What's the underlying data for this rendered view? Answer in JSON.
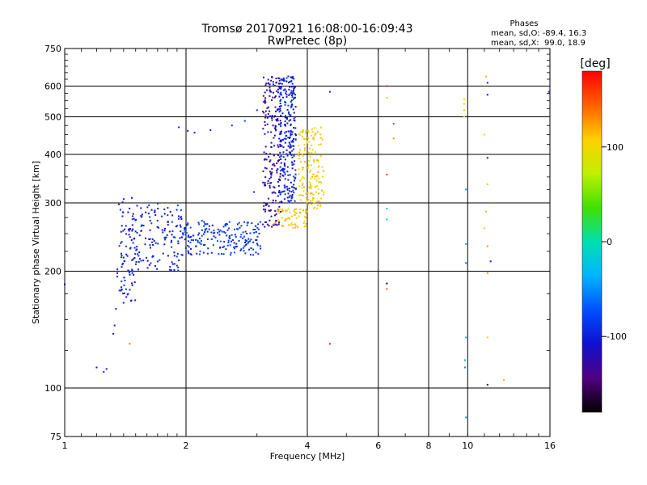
{
  "chart_data": {
    "type": "scatter",
    "title": "Tromsø 20170921 16:08:00-16:09:43",
    "subtitle": "RwPretec (8p)",
    "xlabel": "Frequency [MHz]",
    "ylabel": "Stationary phase Virtual Height [km]",
    "x_scale": "log",
    "y_scale": "log",
    "xlim": [
      1,
      16
    ],
    "ylim": [
      75,
      750
    ],
    "x_ticks": [
      1,
      2,
      4,
      6,
      8,
      10,
      16
    ],
    "x_tick_labels": [
      "1",
      "2",
      "4",
      "6",
      "8",
      "10",
      "16"
    ],
    "y_ticks": [
      75,
      100,
      200,
      300,
      400,
      500,
      600,
      750
    ],
    "y_tick_labels": [
      "75",
      "100",
      "200",
      "300",
      "400",
      "500",
      "600",
      "750"
    ],
    "grid": true,
    "stats": {
      "heading": "Phases",
      "line_o": "mean, sd,O: -89.4, 16.3",
      "line_x": "mean, sd,X:  99.0, 18.9"
    },
    "colorbar": {
      "label": "[deg]",
      "range": [
        -180,
        180
      ],
      "ticks": [
        -100,
        0,
        100
      ],
      "tick_labels": [
        "-100",
        "0",
        "100"
      ]
    },
    "clusters": [
      {
        "x": [
          1.35,
          1.5
        ],
        "y": [
          165,
          310
        ],
        "phase": -105,
        "n": 90,
        "note": "O low"
      },
      {
        "x": [
          1.5,
          1.95
        ],
        "y": [
          200,
          300
        ],
        "phase": -100,
        "n": 130
      },
      {
        "x": [
          1.95,
          3.1
        ],
        "y": [
          220,
          270
        ],
        "phase": -88,
        "n": 200
      },
      {
        "x": [
          3.1,
          3.45
        ],
        "y": [
          260,
          640
        ],
        "phase": -125,
        "n": 200,
        "note": "O cusp"
      },
      {
        "x": [
          3.4,
          3.75
        ],
        "y": [
          300,
          640
        ],
        "phase": -100,
        "n": 260
      },
      {
        "x": [
          3.3,
          4.0
        ],
        "y": [
          258,
          290
        ],
        "phase": 110,
        "n": 60,
        "note": "X trace"
      },
      {
        "x": [
          3.8,
          4.4
        ],
        "y": [
          290,
          470
        ],
        "phase": 105,
        "n": 150
      }
    ],
    "trace_points": [
      {
        "x": 1.0,
        "y": 185,
        "phase": -110
      },
      {
        "x": 1.2,
        "y": 113,
        "phase": -115
      },
      {
        "x": 1.25,
        "y": 110,
        "phase": -110
      },
      {
        "x": 1.27,
        "y": 112,
        "phase": -108
      },
      {
        "x": 1.32,
        "y": 138,
        "phase": -110
      },
      {
        "x": 1.33,
        "y": 145,
        "phase": -105
      },
      {
        "x": 1.34,
        "y": 160,
        "phase": -105
      },
      {
        "x": 1.45,
        "y": 130,
        "phase": 140
      },
      {
        "x": 1.92,
        "y": 470,
        "phase": -110
      },
      {
        "x": 2.02,
        "y": 460,
        "phase": -100
      },
      {
        "x": 2.1,
        "y": 455,
        "phase": -100
      },
      {
        "x": 2.3,
        "y": 462,
        "phase": -95
      },
      {
        "x": 2.6,
        "y": 475,
        "phase": -85
      },
      {
        "x": 2.8,
        "y": 488,
        "phase": -80
      },
      {
        "x": 3.0,
        "y": 520,
        "phase": -90
      },
      {
        "x": 3.15,
        "y": 545,
        "phase": -95
      },
      {
        "x": 3.25,
        "y": 580,
        "phase": -105
      },
      {
        "x": 2.95,
        "y": 320,
        "phase": -100
      },
      {
        "x": 4.55,
        "y": 580,
        "phase": -110
      },
      {
        "x": 4.55,
        "y": 130,
        "phase": 170
      },
      {
        "x": 6.3,
        "y": 600,
        "phase": 170
      },
      {
        "x": 6.3,
        "y": 560,
        "phase": 60
      },
      {
        "x": 6.3,
        "y": 355,
        "phase": 160
      },
      {
        "x": 6.3,
        "y": 290,
        "phase": -20
      },
      {
        "x": 6.3,
        "y": 272,
        "phase": -30
      },
      {
        "x": 6.3,
        "y": 186,
        "phase": -170
      },
      {
        "x": 6.3,
        "y": 180,
        "phase": 150
      },
      {
        "x": 6.55,
        "y": 480,
        "phase": 160
      },
      {
        "x": 6.55,
        "y": 440,
        "phase": 130
      },
      {
        "x": 9.8,
        "y": 555,
        "phase": 110
      },
      {
        "x": 9.8,
        "y": 540,
        "phase": 105
      },
      {
        "x": 9.8,
        "y": 520,
        "phase": 115
      },
      {
        "x": 9.8,
        "y": 500,
        "phase": 110
      },
      {
        "x": 9.9,
        "y": 325,
        "phase": -40
      },
      {
        "x": 9.9,
        "y": 235,
        "phase": -45
      },
      {
        "x": 9.9,
        "y": 210,
        "phase": -60
      },
      {
        "x": 9.9,
        "y": 135,
        "phase": -35
      },
      {
        "x": 9.85,
        "y": 118,
        "phase": -40
      },
      {
        "x": 9.85,
        "y": 113,
        "phase": -50
      },
      {
        "x": 9.9,
        "y": 84,
        "phase": -45
      },
      {
        "x": 11.1,
        "y": 635,
        "phase": 120
      },
      {
        "x": 11.2,
        "y": 612,
        "phase": -110
      },
      {
        "x": 11.2,
        "y": 570,
        "phase": -120
      },
      {
        "x": 11.0,
        "y": 450,
        "phase": 110
      },
      {
        "x": 11.2,
        "y": 392,
        "phase": -150
      },
      {
        "x": 11.2,
        "y": 335,
        "phase": 110
      },
      {
        "x": 11.4,
        "y": 300,
        "phase": 140
      },
      {
        "x": 11.1,
        "y": 285,
        "phase": 60
      },
      {
        "x": 11.0,
        "y": 258,
        "phase": 110
      },
      {
        "x": 11.2,
        "y": 232,
        "phase": 130
      },
      {
        "x": 11.4,
        "y": 212,
        "phase": -110
      },
      {
        "x": 11.2,
        "y": 198,
        "phase": 130
      },
      {
        "x": 11.2,
        "y": 135,
        "phase": 110
      },
      {
        "x": 11.2,
        "y": 102,
        "phase": -150
      },
      {
        "x": 12.3,
        "y": 105,
        "phase": 120
      },
      {
        "x": 15.9,
        "y": 580,
        "phase": -90
      }
    ]
  }
}
